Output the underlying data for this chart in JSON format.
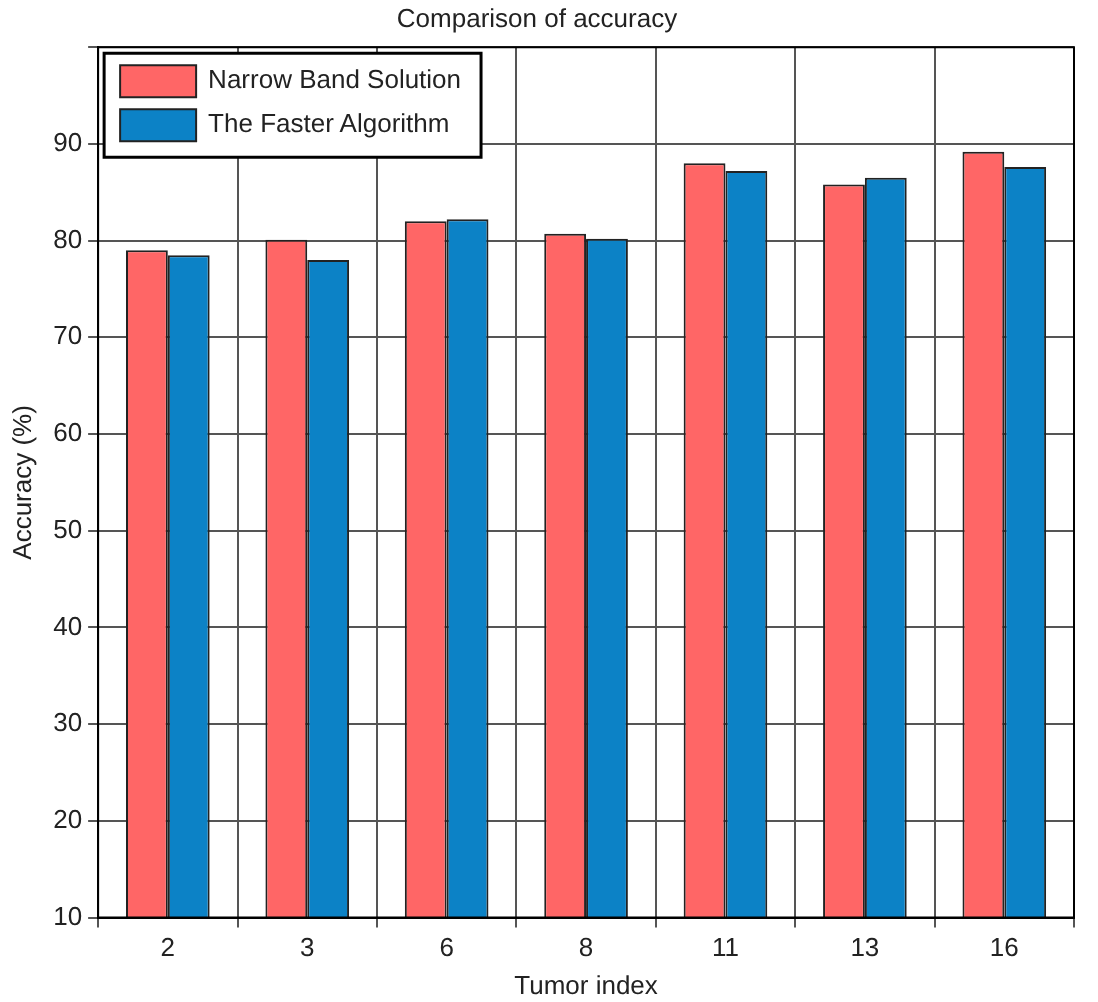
{
  "chart_data": {
    "type": "bar",
    "title": "Comparison of accuracy",
    "xlabel": "Tumor index",
    "ylabel": "Accuracy (%)",
    "categories": [
      "2",
      "3",
      "6",
      "8",
      "11",
      "13",
      "16"
    ],
    "series": [
      {
        "name": "Narrow Band Solution",
        "color": "#ff6666",
        "values": [
          79.0,
          80.1,
          82.0,
          80.7,
          88.0,
          85.8,
          89.2
        ]
      },
      {
        "name": "The Faster Algorithm",
        "color": "#0c82c6",
        "values": [
          78.5,
          78.0,
          82.2,
          80.2,
          87.2,
          86.5,
          87.6
        ]
      }
    ],
    "ylim": [
      10,
      100
    ],
    "yticks": [
      10,
      20,
      30,
      40,
      50,
      60,
      70,
      80,
      90,
      {
        "value": 100,
        "label": null
      }
    ],
    "grid": true,
    "legend": "top left"
  }
}
